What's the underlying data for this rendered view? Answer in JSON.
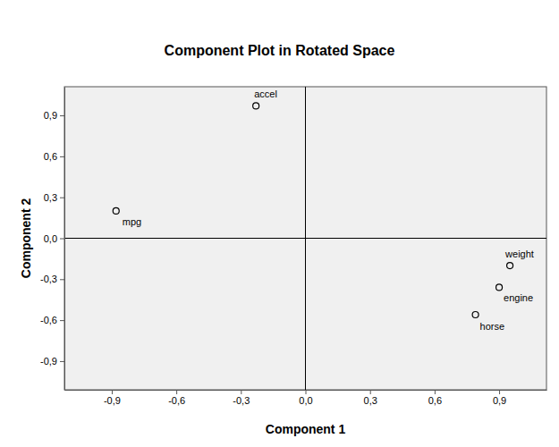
{
  "chart_data": {
    "type": "scatter",
    "title": "Component Plot in Rotated Space",
    "x_label": "Component 1",
    "y_label": "Component 2",
    "labels": [
      "accel",
      "mpg",
      "weight",
      "engine",
      "horse"
    ],
    "x": [
      -0.23,
      -0.88,
      0.95,
      0.9,
      0.79
    ],
    "values": [
      0.97,
      0.2,
      -0.2,
      -0.36,
      -0.56
    ],
    "marker": "circle",
    "color": "#000000",
    "xlim": [
      -1.12,
      1.12
    ],
    "ylim": [
      -1.11,
      1.11
    ],
    "xticks": [
      {
        "value": -0.9,
        "label": "-0,9"
      },
      {
        "value": -0.6,
        "label": "-0,6"
      },
      {
        "value": -0.3,
        "label": "-0,3"
      },
      {
        "value": 0,
        "label": "0,0"
      },
      {
        "value": 0.3,
        "label": "0,3"
      },
      {
        "value": 0.6,
        "label": "0,6"
      },
      {
        "value": 0.9,
        "label": "0,9"
      }
    ],
    "yticks": [
      {
        "value": -0.9,
        "label": "-0,9"
      },
      {
        "value": -0.6,
        "label": "-0,6"
      },
      {
        "value": -0.3,
        "label": "-0,3"
      },
      {
        "value": 0,
        "label": "0,0"
      },
      {
        "value": 0.3,
        "label": "0,3"
      },
      {
        "value": 0.6,
        "label": "0,6"
      },
      {
        "value": 0.9,
        "label": "0,9"
      }
    ],
    "grid": false
  }
}
